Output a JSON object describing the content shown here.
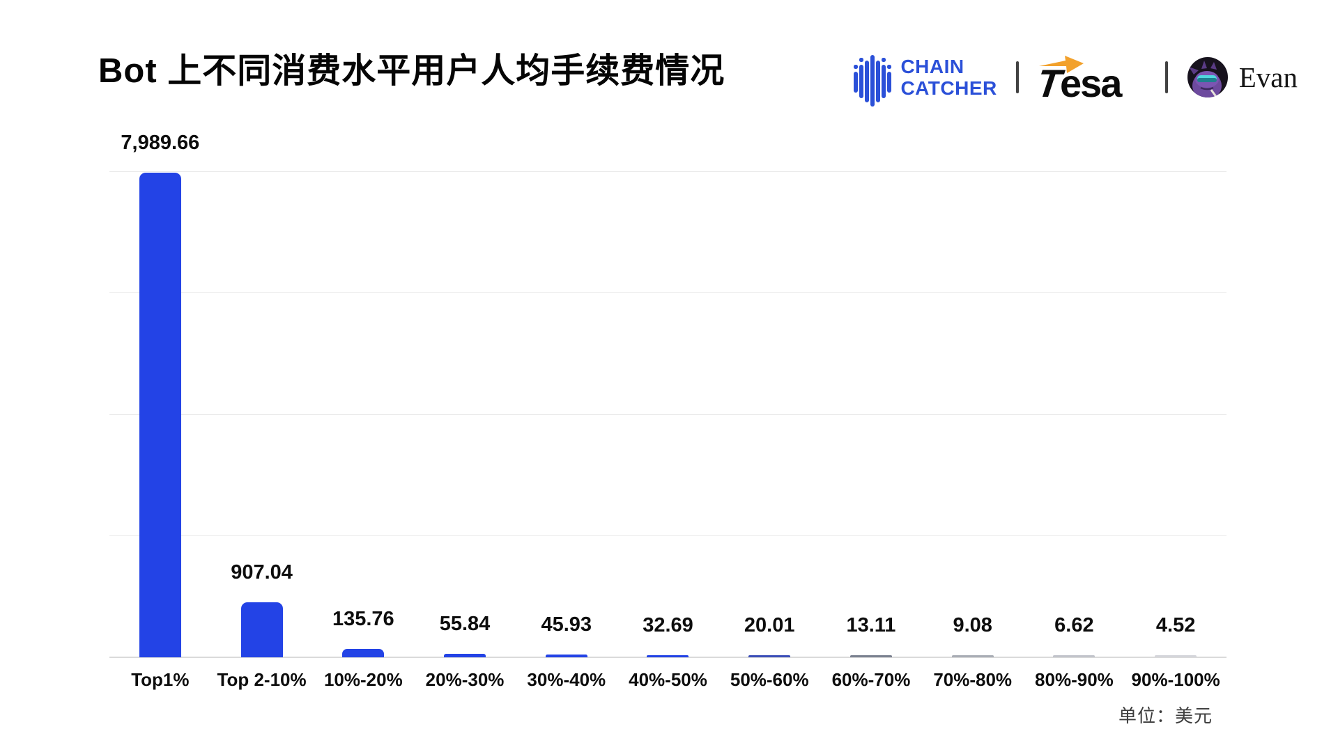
{
  "header": {
    "title": "Bot 上不同消费水平用户人均手续费情况",
    "brands": {
      "chaincatcher_line1": "CHAIN",
      "chaincatcher_line2": "CATCHER",
      "tesa_first": "T",
      "tesa_rest": "esa",
      "evan_name": "Evan"
    }
  },
  "chart_data": {
    "type": "bar",
    "title": "Bot 上不同消费水平用户人均手续费情况",
    "categories": [
      "Top1%",
      "Top 2-10%",
      "10%-20%",
      "20%-30%",
      "30%-40%",
      "40%-50%",
      "50%-60%",
      "60%-70%",
      "70%-80%",
      "80%-90%",
      "90%-100%"
    ],
    "values": [
      7989.66,
      907.04,
      135.76,
      55.84,
      45.93,
      32.69,
      20.01,
      13.11,
      9.08,
      6.62,
      4.52
    ],
    "value_labels": [
      "7,989.66",
      "907.04",
      "135.76",
      "55.84",
      "45.93",
      "32.69",
      "20.01",
      "13.11",
      "9.08",
      "6.62",
      "4.52"
    ],
    "xlabel": "",
    "ylabel": "",
    "ylim": [
      0,
      8000
    ],
    "gridline_values": [
      2000,
      4000,
      6000,
      8000
    ],
    "grid": "horizontal-only-unlabeled",
    "legend": "none",
    "bar_color": "#2343e6",
    "unit_note": "单位：美元"
  },
  "colors": {
    "brand_blue": "#2b50d8",
    "arrow_orange": "#f2a12c",
    "gridline": "#e9e9e9",
    "baseline": "#dadada"
  }
}
